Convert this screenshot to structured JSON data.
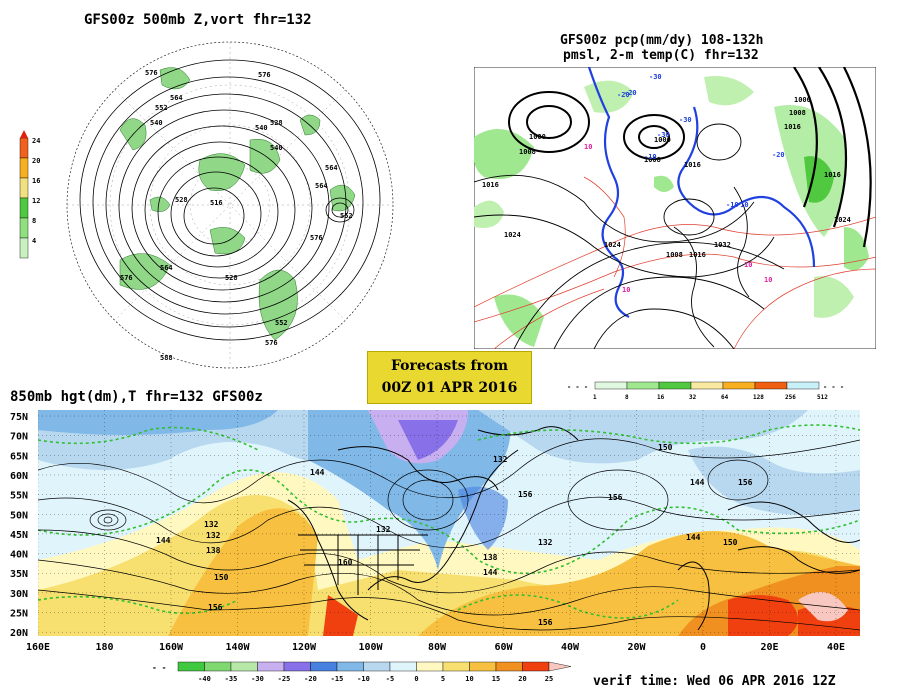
{
  "polar_panel": {
    "title": "GFS00z  500mb Z,vort    fhr=132",
    "legend": {
      "ticks": [
        "24",
        "20",
        "16",
        "12",
        "8",
        "4"
      ],
      "colors": [
        "#f0601e",
        "#f8b020",
        "#f0e080",
        "#50c840",
        "#90e080",
        "#c8f0c0"
      ]
    },
    "contour_labels": [
      "576",
      "576",
      "564",
      "552",
      "540",
      "528",
      "516",
      "540",
      "564",
      "528",
      "552",
      "528",
      "576",
      "588",
      "552",
      "564",
      "576",
      "540",
      "564",
      "576"
    ]
  },
  "pmsl_panel": {
    "title_line1": "GFS00z pcp(mm/dy) 108-132h",
    "title_line2": "pmsl, 2-m temp(C)  fhr=132",
    "pressure_labels": [
      "1000",
      "1008",
      "1016",
      "1024",
      "1000",
      "1008",
      "1016",
      "1024",
      "1032",
      "1016",
      "1008",
      "1016",
      "1024",
      "1000",
      "1008",
      "1016"
    ],
    "temp_labels": [
      "-30",
      "-20",
      "-10",
      "-30",
      "-20",
      "-10",
      "-30",
      "-20",
      "-10",
      "10",
      "10",
      "10",
      "10"
    ],
    "legend": {
      "ticks": [
        "1",
        "8",
        "16",
        "32",
        "64",
        "128",
        "256",
        "512"
      ],
      "colors": [
        "#e0f8e0",
        "#a0e890",
        "#50c840",
        "#f8e8a0",
        "#f8b020",
        "#f06010",
        "#c8f0f8"
      ]
    }
  },
  "forecast_box": {
    "line1": "Forecasts from",
    "line2": "00Z 01 APR 2016"
  },
  "panel_850": {
    "title": "850mb hgt(dm),T  fhr=132 GFS00z",
    "lat_labels": [
      "75N",
      "70N",
      "65N",
      "60N",
      "55N",
      "50N",
      "45N",
      "40N",
      "35N",
      "30N",
      "25N",
      "20N"
    ],
    "lon_labels": [
      "160E",
      "180",
      "160W",
      "140W",
      "120W",
      "100W",
      "80W",
      "60W",
      "40W",
      "20W",
      "0",
      "20E",
      "40E"
    ],
    "height_labels": [
      "144",
      "132",
      "132",
      "138",
      "144",
      "150",
      "156",
      "160",
      "156",
      "132",
      "138",
      "144",
      "150",
      "156",
      "132",
      "144",
      "156",
      "150",
      "144",
      "132",
      "156"
    ],
    "legend": {
      "ticks": [
        "-40",
        "-35",
        "-30",
        "-25",
        "-20",
        "-15",
        "-10",
        "-5",
        "0",
        "5",
        "10",
        "15",
        "20",
        "25"
      ],
      "colors": [
        "#40c840",
        "#80d870",
        "#b8e8a8",
        "#c8b0f0",
        "#8870e8",
        "#4880e0",
        "#80b8e8",
        "#b8d8f0",
        "#e0f4fc",
        "#fff8c0",
        "#f8e070",
        "#f8c040",
        "#f09020",
        "#f04010",
        "#f8c8c0"
      ]
    }
  },
  "verif_time": "verif time: Wed 06 APR 2016 12Z"
}
